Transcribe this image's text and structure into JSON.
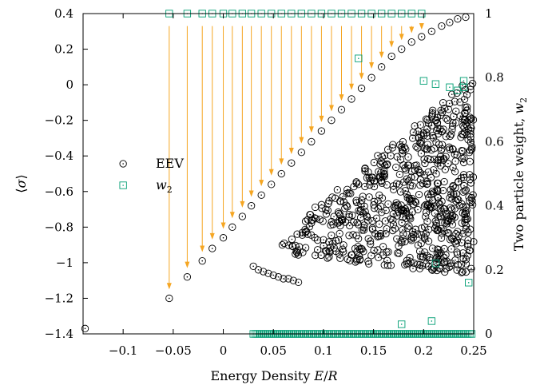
{
  "chart_data": {
    "type": "scatter",
    "xlabel": "Energy Density E/R",
    "ylabel": "⟨σ⟩",
    "y2label": "Two particle weight, w₂",
    "xlim": [
      -0.14,
      0.25
    ],
    "ylim": [
      -1.4,
      0.4
    ],
    "y2lim": [
      0,
      1
    ],
    "x_ticks": [
      -0.1,
      -0.05,
      0,
      0.05,
      0.1,
      0.15,
      0.2,
      0.25
    ],
    "x_tick_labels": [
      "−0.1",
      "−0.05",
      "0",
      "0.05",
      "0.1",
      "0.15",
      "0.2",
      "0.25"
    ],
    "y_ticks": [
      0.4,
      0.2,
      0,
      -0.2,
      -0.4,
      -0.6,
      -0.8,
      -1,
      -1.2,
      -1.4
    ],
    "y_tick_labels": [
      "0.4",
      "0.2",
      "0",
      "−0.2",
      "−0.4",
      "−0.6",
      "−0.8",
      "−1",
      "−1.2",
      "−1.4"
    ],
    "y2_ticks": [
      1,
      0.8,
      0.6,
      0.4,
      0.2,
      0
    ],
    "y2_tick_labels": [
      "1",
      "0.8",
      "0.6",
      "0.4",
      "0.2",
      "0"
    ],
    "legend_position": "middle-left",
    "colors": {
      "eev": "#000000",
      "w2": "#009e73",
      "arrows": "#f5a623"
    },
    "series": [
      {
        "name": "EEV",
        "marker": "circle-dot",
        "upper_line": {
          "x": [
            -0.054,
            -0.036,
            -0.021,
            -0.011,
            0.0,
            0.009,
            0.019,
            0.028,
            0.038,
            0.048,
            0.058,
            0.068,
            0.078,
            0.088,
            0.098,
            0.108,
            0.118,
            0.128,
            0.138,
            0.148,
            0.158,
            0.168,
            0.178,
            0.188,
            0.198,
            0.208,
            0.218,
            0.226,
            0.234,
            0.242
          ],
          "y": [
            -1.2,
            -1.08,
            -0.99,
            -0.92,
            -0.86,
            -0.8,
            -0.74,
            -0.68,
            -0.62,
            -0.56,
            -0.5,
            -0.44,
            -0.38,
            -0.32,
            -0.26,
            -0.2,
            -0.14,
            -0.08,
            -0.02,
            0.04,
            0.1,
            0.16,
            0.2,
            0.24,
            0.27,
            0.3,
            0.33,
            0.35,
            0.37,
            0.38
          ]
        },
        "lower_arc": {
          "x": [
            0.03,
            0.035,
            0.04,
            0.045,
            0.05,
            0.055,
            0.06,
            0.065,
            0.07,
            0.075
          ],
          "y": [
            -1.02,
            -1.04,
            -1.05,
            -1.06,
            -1.07,
            -1.08,
            -1.09,
            -1.09,
            -1.1,
            -1.11
          ]
        },
        "edge_points": {
          "x": [
            -0.138
          ],
          "y": [
            -1.37
          ]
        },
        "cloud_bounds": {
          "x": [
            0.05,
            0.25
          ],
          "y": [
            -1.1,
            0.05
          ]
        }
      },
      {
        "name": "w₂",
        "marker": "square-dot",
        "top_row": {
          "x": [
            -0.054,
            -0.036,
            -0.021,
            -0.011,
            0.0,
            0.009,
            0.019,
            0.028,
            0.038,
            0.048,
            0.058,
            0.068,
            0.078,
            0.088,
            0.098,
            0.108,
            0.118,
            0.128,
            0.138,
            0.148,
            0.158,
            0.168,
            0.178,
            0.188,
            0.198
          ],
          "w2": 1.0
        },
        "scattered": {
          "x": [
            0.135,
            0.2,
            0.212,
            0.226,
            0.234,
            0.24,
            0.24,
            0.245,
            0.212,
            0.178,
            0.208
          ],
          "w2": [
            0.86,
            0.79,
            0.78,
            0.77,
            0.76,
            0.79,
            0.77,
            0.16,
            0.22,
            0.03,
            0.04
          ]
        },
        "bottom_band": {
          "x": [
            0.03,
            0.25
          ],
          "w2": 0.0
        }
      }
    ],
    "arrows": {
      "x": [
        -0.054,
        -0.036,
        -0.021,
        -0.011,
        0.0,
        0.009,
        0.019,
        0.028,
        0.038,
        0.048,
        0.058,
        0.068,
        0.078,
        0.088,
        0.098,
        0.108,
        0.118,
        0.128,
        0.138,
        0.148,
        0.158,
        0.168,
        0.178,
        0.188,
        0.198
      ],
      "from_y": [
        0.33,
        0.33,
        0.33,
        0.33,
        0.33,
        0.33,
        0.33,
        0.33,
        0.33,
        0.33,
        0.33,
        0.33,
        0.33,
        0.33,
        0.33,
        0.33,
        0.33,
        0.33,
        0.33,
        0.33,
        0.33,
        0.33,
        0.33,
        0.33,
        0.33
      ],
      "to_y": [
        -1.15,
        -1.03,
        -0.94,
        -0.87,
        -0.81,
        -0.75,
        -0.69,
        -0.63,
        -0.57,
        -0.51,
        -0.45,
        -0.39,
        -0.33,
        -0.27,
        -0.21,
        -0.15,
        -0.09,
        -0.03,
        0.03,
        0.09,
        0.15,
        0.21,
        0.25,
        0.29,
        0.31
      ]
    }
  }
}
